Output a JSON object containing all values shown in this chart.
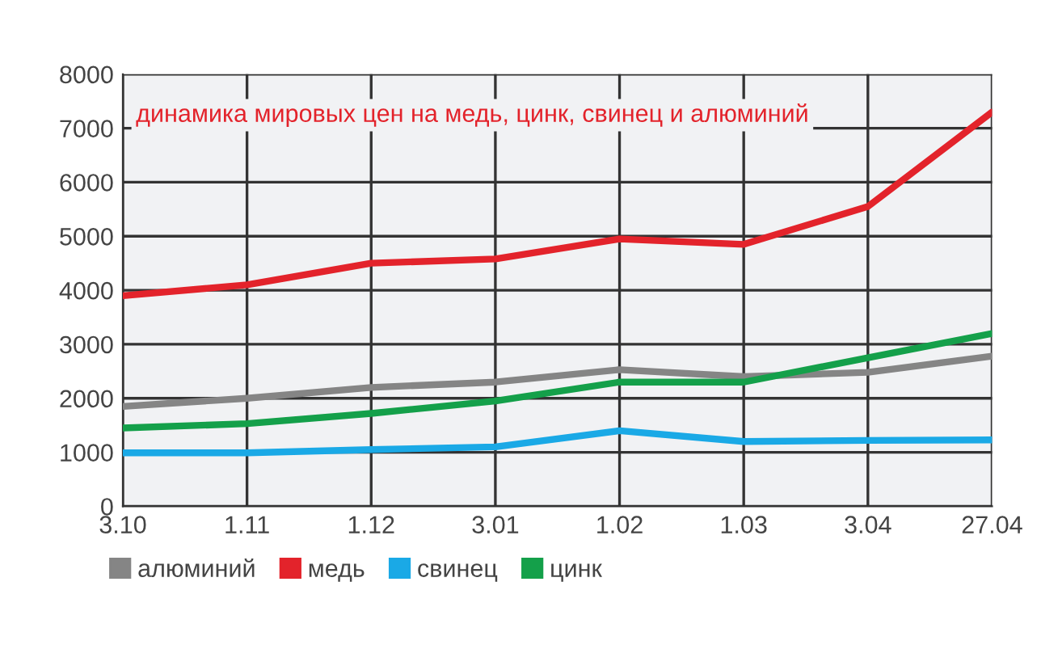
{
  "chart_data": {
    "type": "line",
    "title": "динамика мировых цен на медь, цинк, свинец и алюминий",
    "categories": [
      "3.10",
      "1.11",
      "1.12",
      "3.01",
      "1.02",
      "1.03",
      "3.04",
      "27.04"
    ],
    "series": [
      {
        "name": "алюминий",
        "color": "#858585",
        "values": [
          1850,
          2000,
          2200,
          2300,
          2530,
          2400,
          2480,
          2780
        ]
      },
      {
        "name": "медь",
        "color": "#e3232b",
        "values": [
          3900,
          4100,
          4500,
          4580,
          4950,
          4850,
          5550,
          7300
        ]
      },
      {
        "name": "свинец",
        "color": "#1aa9e6",
        "values": [
          990,
          990,
          1050,
          1100,
          1400,
          1200,
          1220,
          1230
        ]
      },
      {
        "name": "цинк",
        "color": "#14a04a",
        "values": [
          1450,
          1530,
          1720,
          1950,
          2300,
          2300,
          2750,
          3200
        ]
      }
    ],
    "ylim": [
      0,
      8000
    ],
    "yticks": [
      0,
      1000,
      2000,
      3000,
      4000,
      5000,
      6000,
      7000,
      8000
    ],
    "grid": true,
    "legend": "bottom left",
    "marker": "none",
    "line_style": "solid"
  }
}
